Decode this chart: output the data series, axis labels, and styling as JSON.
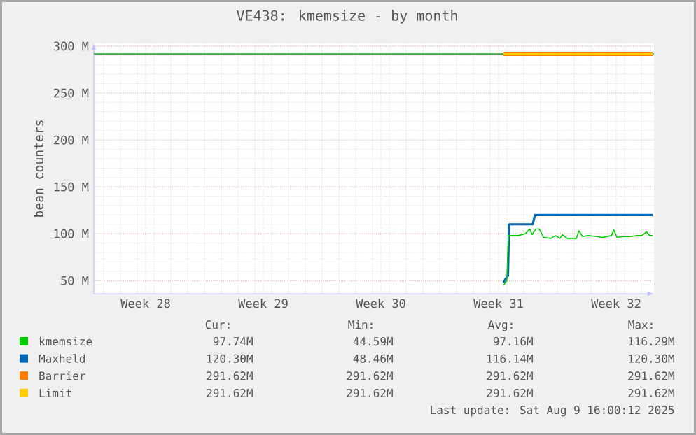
{
  "chart_data": {
    "type": "line",
    "title": "VE438: kmemsize - by month",
    "ylabel": "bean counters",
    "xlim": [
      "2025-07-07T10:00",
      "2025-08-09T18:00"
    ],
    "ylim": [
      36,
      303
    ],
    "xticks": [
      {
        "value": "2025-07-10T12:00",
        "label": "Week 28"
      },
      {
        "value": "2025-07-17T12:00",
        "label": "Week 29"
      },
      {
        "value": "2025-07-24T12:00",
        "label": "Week 30"
      },
      {
        "value": "2025-07-31T12:00",
        "label": "Week 31"
      },
      {
        "value": "2025-08-07T12:00",
        "label": "Week 32"
      }
    ],
    "yticks": [
      {
        "value": 50,
        "label": "50 M"
      },
      {
        "value": 100,
        "label": "100 M"
      },
      {
        "value": 150,
        "label": "150 M"
      },
      {
        "value": 200,
        "label": "200 M"
      },
      {
        "value": 250,
        "label": "250 M"
      },
      {
        "value": 300,
        "label": "300 M"
      }
    ],
    "grid": true,
    "legend": "bottom",
    "ref_lines": [
      {
        "axis": "y",
        "value": 291.62,
        "label": null,
        "color": "#33aa33"
      }
    ],
    "series": [
      {
        "name": "kmemsize",
        "color": "#00cc00",
        "x": [
          "2025-07-31T19:00",
          "2025-07-31T23:45",
          "2025-08-01T02:15",
          "2025-08-01T06:00",
          "2025-08-01T16:00",
          "2025-08-02T02:00",
          "2025-08-02T08:30",
          "2025-08-02T12:00",
          "2025-08-02T17:15",
          "2025-08-02T22:00",
          "2025-08-03T04:30",
          "2025-08-03T14:30",
          "2025-08-03T21:20",
          "2025-08-04T03:50",
          "2025-08-04T07:15",
          "2025-08-04T14:00",
          "2025-08-05T03:15",
          "2025-08-05T06:35",
          "2025-08-05T12:00",
          "2025-08-05T19:50",
          "2025-08-06T09:15",
          "2025-08-06T15:50",
          "2025-08-07T05:15",
          "2025-08-07T08:40",
          "2025-08-07T13:10",
          "2025-08-07T21:55",
          "2025-08-08T08:00",
          "2025-08-08T17:55",
          "2025-08-09T00:40",
          "2025-08-09T07:20",
          "2025-08-09T11:50",
          "2025-08-09T16:00"
        ],
        "values": [
          45,
          50,
          98,
          98,
          98,
          100,
          105,
          99,
          105,
          105,
          96,
          95,
          98,
          95,
          99,
          95,
          95,
          103,
          97,
          98,
          97,
          96,
          98,
          104,
          96,
          97,
          97,
          98,
          98,
          102,
          98,
          98
        ]
      },
      {
        "name": "Maxheld",
        "color": "#0066b3",
        "x": [
          "2025-07-31T19:00",
          "2025-07-31T22:05",
          "2025-08-01T01:25",
          "2025-08-01T03:05",
          "2025-08-02T12:45",
          "2025-08-02T16:05",
          "2025-08-09T16:00"
        ],
        "values": [
          48,
          52,
          55,
          110,
          110,
          120,
          120
        ]
      },
      {
        "name": "Barrier",
        "color": "#ff8000",
        "x": [
          "2025-07-31T19:00",
          "2025-08-09T16:00"
        ],
        "values": [
          291.62,
          291.62
        ]
      },
      {
        "name": "Limit",
        "color": "#ffcc00",
        "x": [
          "2025-07-31T19:00",
          "2025-08-09T16:00"
        ],
        "values": [
          291.62,
          291.62
        ]
      }
    ],
    "annotations": [
      "Cur:",
      "Min:",
      "Avg:",
      "Max:",
      "97.74M",
      "44.59M",
      "97.16M",
      "116.29M",
      "120.30M",
      "48.46M",
      "116.14M",
      "120.30M",
      "291.62M",
      "291.62M",
      "291.62M",
      "291.62M",
      "291.62M",
      "291.62M",
      "291.62M",
      "291.62M",
      "Last update: Sat Aug  9 16:00:12 2025"
    ]
  }
}
